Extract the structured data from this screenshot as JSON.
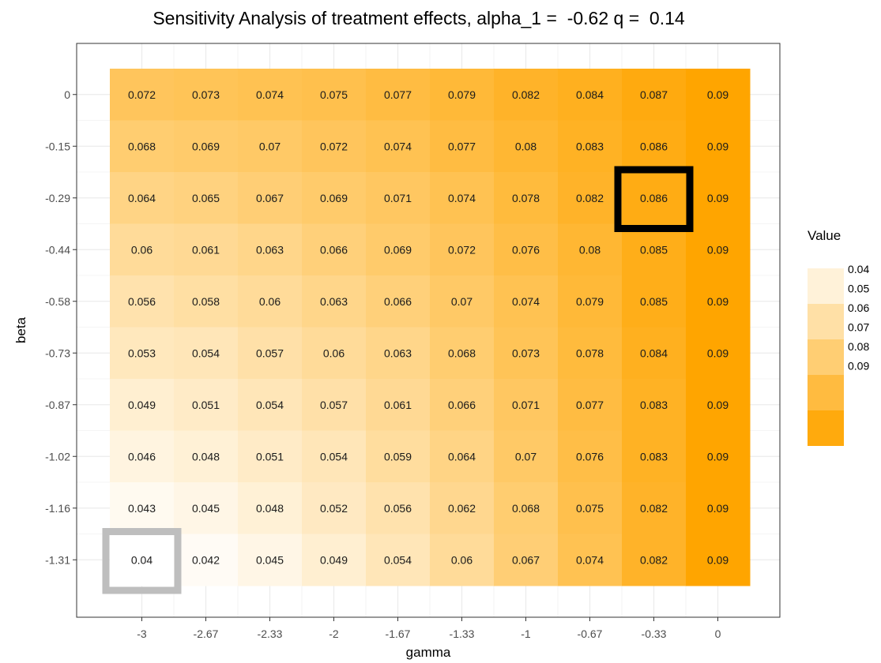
{
  "chart_data": {
    "type": "heatmap",
    "title": "Sensitivity Analysis of treatment effects, alpha_1 =  -0.62 q =  0.14",
    "xlabel": "gamma",
    "ylabel": "beta",
    "x_categories": [
      "-3",
      "-2.67",
      "-2.33",
      "-2",
      "-1.67",
      "-1.33",
      "-1",
      "-0.67",
      "-0.33",
      "0"
    ],
    "y_categories": [
      "0",
      "-0.15",
      "-0.29",
      "-0.44",
      "-0.58",
      "-0.73",
      "-0.87",
      "-1.02",
      "-1.16",
      "-1.31"
    ],
    "values": [
      [
        "0.072",
        "0.073",
        "0.074",
        "0.075",
        "0.077",
        "0.079",
        "0.082",
        "0.084",
        "0.087",
        "0.09"
      ],
      [
        "0.068",
        "0.069",
        "0.07",
        "0.072",
        "0.074",
        "0.077",
        "0.08",
        "0.083",
        "0.086",
        "0.09"
      ],
      [
        "0.064",
        "0.065",
        "0.067",
        "0.069",
        "0.071",
        "0.074",
        "0.078",
        "0.082",
        "0.086",
        "0.09"
      ],
      [
        "0.06",
        "0.061",
        "0.063",
        "0.066",
        "0.069",
        "0.072",
        "0.076",
        "0.08",
        "0.085",
        "0.09"
      ],
      [
        "0.056",
        "0.058",
        "0.06",
        "0.063",
        "0.066",
        "0.07",
        "0.074",
        "0.079",
        "0.085",
        "0.09"
      ],
      [
        "0.053",
        "0.054",
        "0.057",
        "0.06",
        "0.063",
        "0.068",
        "0.073",
        "0.078",
        "0.084",
        "0.09"
      ],
      [
        "0.049",
        "0.051",
        "0.054",
        "0.057",
        "0.061",
        "0.066",
        "0.071",
        "0.077",
        "0.083",
        "0.09"
      ],
      [
        "0.046",
        "0.048",
        "0.051",
        "0.054",
        "0.059",
        "0.064",
        "0.07",
        "0.076",
        "0.083",
        "0.09"
      ],
      [
        "0.043",
        "0.045",
        "0.048",
        "0.052",
        "0.056",
        "0.062",
        "0.068",
        "0.075",
        "0.082",
        "0.09"
      ],
      [
        "0.04",
        "0.042",
        "0.045",
        "0.049",
        "0.054",
        "0.06",
        "0.067",
        "0.074",
        "0.082",
        "0.09"
      ]
    ],
    "highlighted_cells": [
      {
        "gamma": "-0.33",
        "beta": "-0.29",
        "value": "0.086",
        "style": "black"
      },
      {
        "gamma": "-3",
        "beta": "-1.31",
        "value": "0.04",
        "style": "gray"
      }
    ],
    "legend": {
      "title": "Value",
      "position": "right",
      "labels": [
        "0.04",
        "0.05",
        "0.06",
        "0.07",
        "0.08",
        "0.09"
      ]
    },
    "color_scale": {
      "low": "#ffffff",
      "high": "#ffa500",
      "min": 0.04,
      "max": 0.09
    },
    "colors": {
      "grid": "#ebebeb",
      "panel_border": "#333333",
      "highlight_black": "#000000",
      "highlight_gray": "#bebebe"
    }
  }
}
